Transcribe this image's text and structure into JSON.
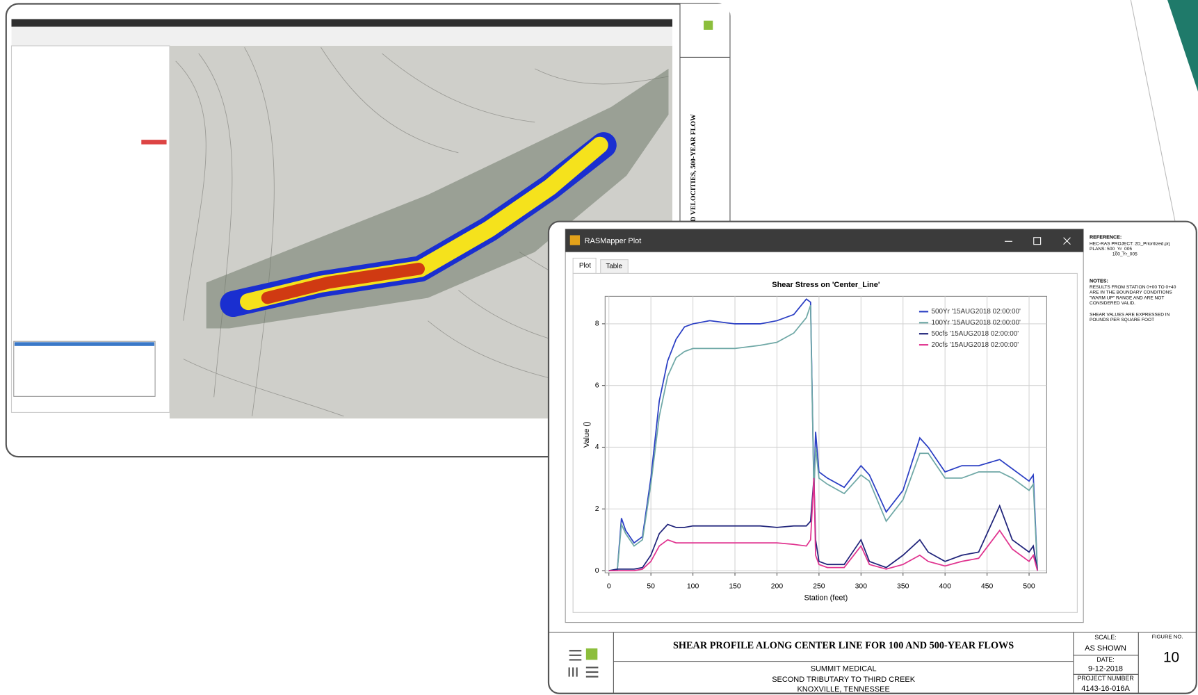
{
  "back_window": {
    "drawing_title": "D VELOCITIES, 500-YEAR FLOW"
  },
  "plot_window": {
    "title": "RASMapper Plot",
    "tabs": [
      "Plot",
      "Table"
    ]
  },
  "chart_data": {
    "type": "line",
    "title": "Shear Stress on 'Center_Line'",
    "x_label": "Station (feet)",
    "y_label": "Value ()",
    "x": [
      0,
      10,
      15,
      20,
      30,
      40,
      50,
      60,
      70,
      80,
      90,
      100,
      120,
      150,
      180,
      200,
      220,
      235,
      240,
      244,
      246,
      250,
      260,
      280,
      300,
      310,
      330,
      350,
      370,
      380,
      400,
      420,
      440,
      465,
      480,
      500,
      505,
      510
    ],
    "series": [
      {
        "name": "500Yr '15AUG2018 02:00:00'",
        "color": "#2b3fc4",
        "values": [
          0,
          0,
          1.7,
          1.3,
          0.9,
          1.1,
          3.0,
          5.5,
          6.8,
          7.5,
          7.9,
          8.0,
          8.1,
          8.0,
          8.0,
          8.1,
          8.3,
          8.8,
          8.7,
          2.6,
          4.5,
          3.2,
          3.0,
          2.7,
          3.4,
          3.1,
          1.9,
          2.6,
          4.3,
          4.0,
          3.2,
          3.4,
          3.4,
          3.6,
          3.3,
          2.9,
          3.1,
          0
        ]
      },
      {
        "name": "100Yr '15AUG2018 02:00:00'",
        "color": "#6fa8a6",
        "values": [
          0,
          0,
          1.5,
          1.2,
          0.8,
          1.0,
          2.8,
          5.0,
          6.3,
          6.9,
          7.1,
          7.2,
          7.2,
          7.2,
          7.3,
          7.4,
          7.7,
          8.2,
          8.6,
          2.5,
          4.0,
          3.0,
          2.8,
          2.5,
          3.1,
          2.9,
          1.6,
          2.3,
          3.8,
          3.8,
          3.0,
          3.0,
          3.2,
          3.2,
          3.0,
          2.6,
          2.8,
          0
        ]
      },
      {
        "name": "50cfs '15AUG2018 02:00:00'",
        "color": "#1f237a",
        "values": [
          0,
          0.05,
          0.05,
          0.05,
          0.05,
          0.1,
          0.5,
          1.2,
          1.5,
          1.4,
          1.4,
          1.45,
          1.45,
          1.45,
          1.45,
          1.4,
          1.45,
          1.45,
          1.6,
          3.0,
          1.0,
          0.3,
          0.2,
          0.2,
          1.0,
          0.3,
          0.1,
          0.5,
          1.0,
          0.6,
          0.3,
          0.5,
          0.6,
          2.1,
          1.0,
          0.6,
          0.8,
          0
        ]
      },
      {
        "name": "20cfs '15AUG2018 02:00:00'",
        "color": "#e0338f",
        "values": [
          0,
          0,
          0,
          0,
          0,
          0.05,
          0.3,
          0.8,
          1.0,
          0.9,
          0.9,
          0.9,
          0.9,
          0.9,
          0.9,
          0.9,
          0.85,
          0.8,
          1.0,
          3.0,
          0.5,
          0.2,
          0.1,
          0.1,
          0.8,
          0.2,
          0.05,
          0.2,
          0.5,
          0.3,
          0.15,
          0.3,
          0.4,
          1.3,
          0.7,
          0.3,
          0.5,
          0
        ]
      }
    ],
    "xlim": [
      -4.5,
      521
    ],
    "ylim": [
      -0.07,
      8.89
    ],
    "xticks": [
      0,
      50,
      100,
      150,
      200,
      250,
      300,
      350,
      400,
      450,
      500
    ],
    "yticks": [
      0,
      2,
      4,
      6,
      8
    ],
    "grid": true,
    "legend": "upper right"
  },
  "title_block": {
    "title": "SHEAR PROFILE ALONG CENTER LINE FOR 100 AND 500-YEAR FLOWS",
    "client": "SUMMIT MEDICAL",
    "project": "SECOND TRIBUTARY TO THIRD CREEK",
    "location": "KNOXVILLE, TENNESSEE",
    "scale_label": "SCALE:",
    "scale": "AS SHOWN",
    "date_label": "DATE:",
    "date": "9-12-2018",
    "project_number_label": "PROJECT NUMBER",
    "project_number": "4143-16-016A",
    "figure_label": "FIGURE NO.",
    "figure": "10"
  },
  "side_notes": {
    "reference_heading": "REFERENCE:",
    "reference_lines": [
      "HEC-RAS PROJECT: 2D_Prioritized.prj",
      "PLANS: 500_Yr_005",
      "100_Yr_005"
    ],
    "notes_heading": "NOTES:",
    "notes_lines": [
      "RESULTS FROM STATION 0+00 TO 0+40",
      "ARE IN THE BOUNDARY CONDITIONS",
      "\"WARM UP\" RANGE AND ARE NOT",
      "CONSIDERED VALID.",
      "SHEAR VALUES ARE EXPRESSED IN",
      "POUNDS PER SQUARE FOOT"
    ]
  }
}
